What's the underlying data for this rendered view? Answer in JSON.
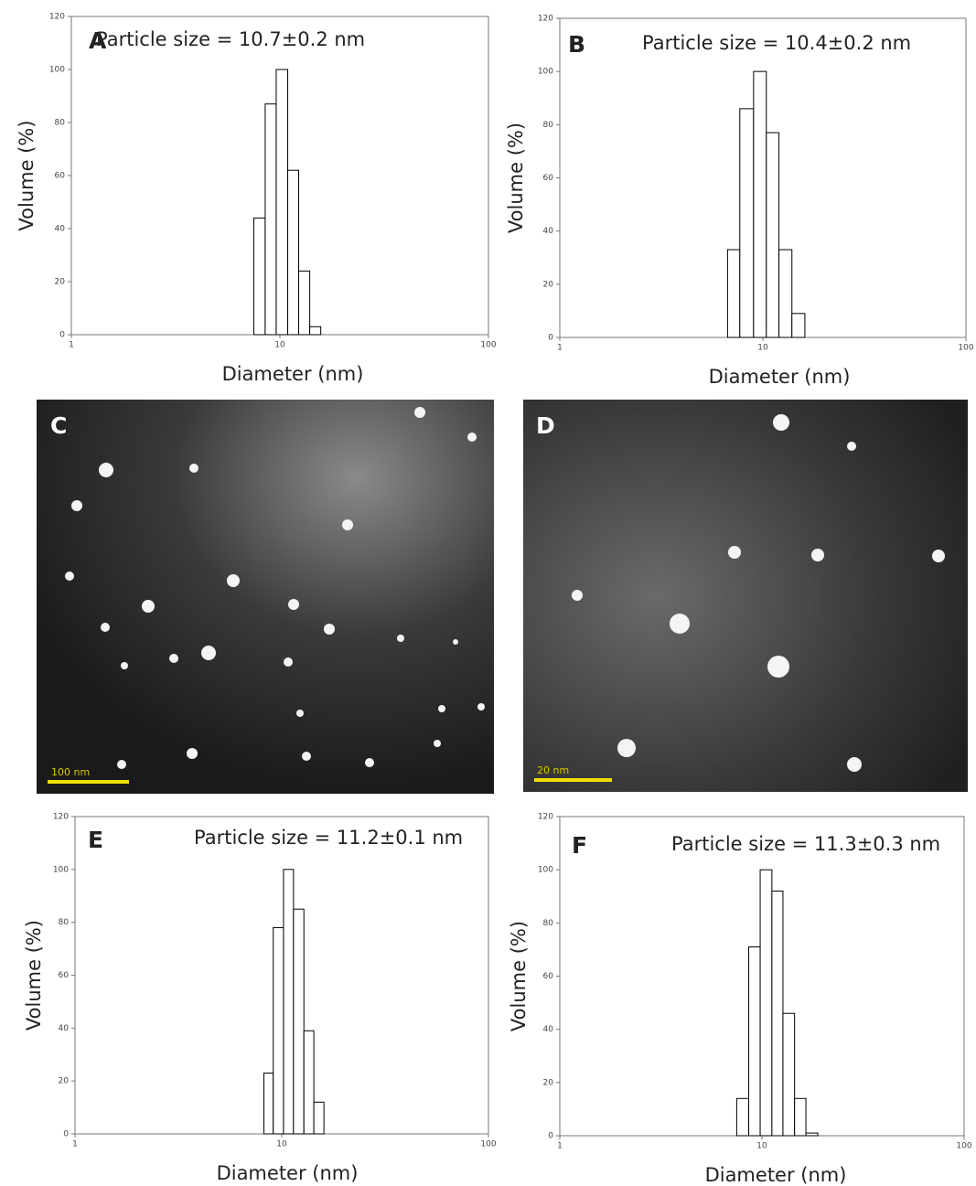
{
  "chart_data": [
    {
      "type": "histogram",
      "panel": "A",
      "annotation": "Particle size = 10.7±0.2 nm",
      "x_label": "Diameter (nm)",
      "y_label": "Volume (%)",
      "bins": [
        7.5,
        8.5,
        9.6,
        10.9,
        12.3,
        13.9,
        15.7
      ],
      "values": [
        44,
        87,
        100,
        62,
        24,
        3
      ],
      "color": "#ffffff",
      "edgecolor": "#000000",
      "log_x": true,
      "xlim": [
        1,
        100
      ],
      "xticks": [
        1,
        10,
        100
      ],
      "ylim": [
        0,
        120
      ],
      "yticks": [
        0,
        20,
        40,
        60,
        80,
        100,
        120
      ]
    },
    {
      "type": "histogram",
      "panel": "B",
      "annotation": "Particle size = 10.4±0.2 nm",
      "x_label": "Diameter (nm)",
      "y_label": "Volume (%)",
      "bins": [
        6.7,
        7.7,
        9.0,
        10.4,
        12.0,
        13.9,
        16.1
      ],
      "values": [
        33,
        86,
        100,
        77,
        33,
        9
      ],
      "color": "#ffffff",
      "edgecolor": "#000000",
      "log_x": true,
      "xlim": [
        1,
        100
      ],
      "xticks": [
        1,
        10,
        100
      ],
      "ylim": [
        0,
        120
      ],
      "yticks": [
        0,
        20,
        40,
        60,
        80,
        100,
        120
      ]
    },
    {
      "type": "histogram",
      "panel": "E",
      "annotation": "Particle size = 11.2±0.1 nm",
      "x_label": "Diameter (nm)",
      "y_label": "Volume (%)",
      "bins": [
        8.2,
        9.1,
        10.2,
        11.4,
        12.8,
        14.3,
        16.0
      ],
      "values": [
        23,
        78,
        100,
        85,
        39,
        12
      ],
      "color": "#ffffff",
      "edgecolor": "#000000",
      "log_x": true,
      "xlim": [
        1,
        100
      ],
      "xticks": [
        1,
        10,
        100
      ],
      "ylim": [
        0,
        120
      ],
      "yticks": [
        0,
        20,
        40,
        60,
        80,
        100,
        120
      ]
    },
    {
      "type": "histogram",
      "panel": "F",
      "annotation": "Particle size = 11.3±0.3 nm",
      "x_label": "Diameter (nm)",
      "y_label": "Volume (%)",
      "bins": [
        7.5,
        8.6,
        9.8,
        11.2,
        12.7,
        14.5,
        16.5,
        18.9
      ],
      "values": [
        14,
        71,
        100,
        92,
        46,
        14,
        1
      ],
      "color": "#ffffff",
      "edgecolor": "#000000",
      "log_x": true,
      "xlim": [
        1,
        100
      ],
      "xticks": [
        1,
        10,
        100
      ],
      "ylim": [
        0,
        120
      ],
      "yticks": [
        0,
        20,
        40,
        60,
        80,
        100,
        120
      ]
    }
  ],
  "images": [
    {
      "panel": "C",
      "scale_bar": "100 nm"
    },
    {
      "panel": "D",
      "scale_bar": "20 nm"
    }
  ]
}
